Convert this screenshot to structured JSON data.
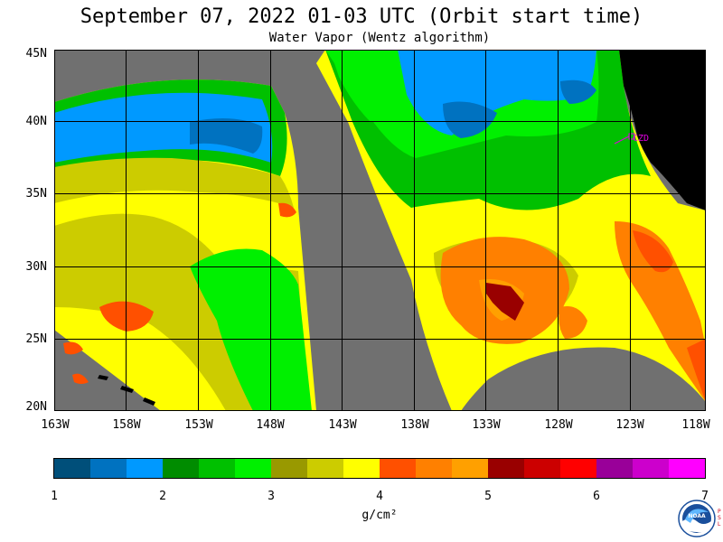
{
  "header": {
    "title": "September 07, 2022  01-03 UTC  (Orbit start time)",
    "subtitle": "Water Vapor (Wentz algorithm)"
  },
  "map": {
    "lat_labels": [
      "45N",
      "40N",
      "35N",
      "30N",
      "25N",
      "20N"
    ],
    "lon_labels": [
      "163W",
      "158W",
      "153W",
      "148W",
      "143W",
      "138W",
      "133W",
      "128W",
      "123W",
      "118W"
    ],
    "station_label": "CZD",
    "colors": {
      "no_data": "#707070",
      "land": "#000000",
      "station": "#e000e0"
    }
  },
  "colorbar": {
    "colors": [
      "#004f7a",
      "#0072c0",
      "#0099ff",
      "#008c00",
      "#00c000",
      "#00f000",
      "#999900",
      "#cccc00",
      "#ffff00",
      "#ff5000",
      "#ff8000",
      "#ffa000",
      "#990000",
      "#cc0000",
      "#ff0000",
      "#990099",
      "#cc00cc",
      "#ff00ff"
    ],
    "ticks": [
      "1",
      "2",
      "3",
      "4",
      "5",
      "6",
      "7"
    ],
    "units": "g/cm²"
  },
  "logo": {
    "text": "NOAA",
    "side_text": "PSL"
  }
}
